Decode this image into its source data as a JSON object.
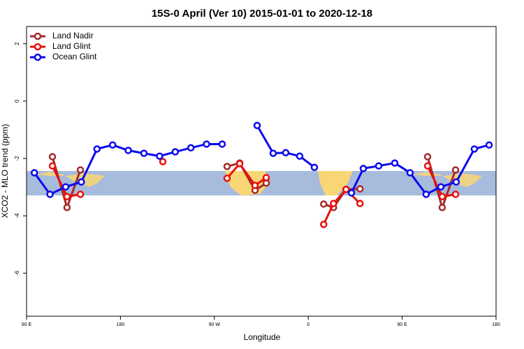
{
  "chart_data": {
    "type": "line",
    "title": "15S-0 April (Ver 10)   2015-01-01 to 2020-12-18",
    "x_label": "Longitude",
    "y_label": "XCO2 - MLO trend (ppm)",
    "xlim": [
      90,
      540
    ],
    "ylim": [
      -7.5,
      2.6
    ],
    "xticks": [
      {
        "value": 90,
        "label": "90 E"
      },
      180,
      {
        "value": 270,
        "label": "90 W"
      },
      {
        "value": 360,
        "label": "0"
      },
      {
        "value": 450,
        "label": "90 E"
      },
      {
        "value": 540,
        "label": "180"
      }
    ],
    "yticks": [
      2,
      0,
      -2,
      -4,
      -6
    ],
    "legend": "top-left",
    "series": [
      {
        "name": "Land Nadir",
        "color": "#a52a2a",
        "x": [
          114.8,
          128.8,
          141.6,
          null,
          282.2,
          294.3,
          309.0,
          319.7,
          null,
          374.8,
          384.2,
          396.2,
          409.6,
          null,
          474.4,
          488.4,
          501.2
        ],
        "values": [
          -1.94,
          -3.71,
          -2.4,
          null,
          -2.28,
          -2.16,
          -3.11,
          -2.86,
          null,
          -3.59,
          -3.71,
          -3.08,
          -3.06,
          null,
          -1.94,
          -3.71,
          -2.4
        ]
      },
      {
        "name": "Land Glint",
        "color": "#e8100c",
        "x": [
          114.8,
          128.8,
          141.6,
          null,
          220.6,
          null,
          282.2,
          294.3,
          309.0,
          319.7,
          null,
          374.8,
          384.2,
          396.2,
          409.6,
          null,
          474.4,
          488.4,
          501.2
        ],
        "values": [
          -2.26,
          -3.33,
          -3.25,
          null,
          -2.11,
          null,
          -2.69,
          -2.18,
          -2.94,
          -2.67,
          null,
          -4.3,
          -3.57,
          -3.08,
          -3.57,
          null,
          -2.26,
          -3.33,
          -3.25
        ]
      },
      {
        "name": "Ocean Glint",
        "color": "#0a0aee",
        "x": [
          97.5,
          112.5,
          127.5,
          142.5,
          157.5,
          172.5,
          187.5,
          202.5,
          217.5,
          232.5,
          247.5,
          262.5,
          277.5,
          null,
          311.0,
          326.4,
          338.4,
          351.8,
          365.9,
          null,
          401.4,
          412.8,
          427.5,
          442.9,
          457.6,
          473.0,
          487.1,
          501.8,
          519.2,
          533.3
        ],
        "values": [
          -2.5,
          -3.25,
          -2.99,
          -2.82,
          -1.67,
          -1.53,
          -1.72,
          -1.82,
          -1.92,
          -1.77,
          -1.63,
          -1.5,
          -1.5,
          null,
          -0.85,
          -1.82,
          -1.8,
          -1.92,
          -2.31,
          null,
          -3.2,
          -2.35,
          -2.26,
          -2.16,
          -2.5,
          -3.25,
          -2.99,
          -2.82,
          -1.67,
          -1.53
        ]
      }
    ]
  }
}
